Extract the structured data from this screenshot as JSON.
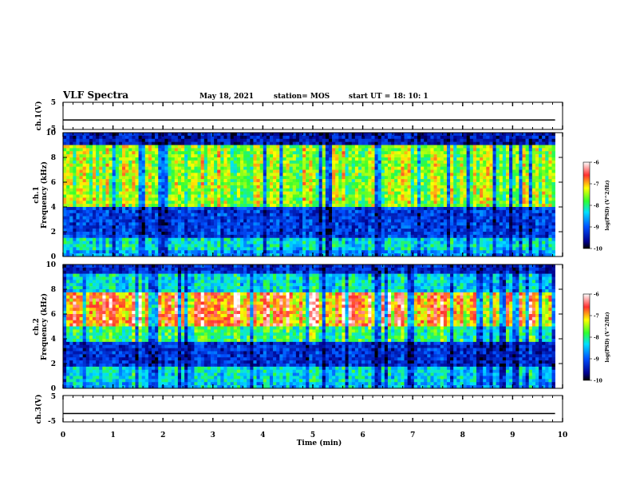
{
  "header": {
    "title": "VLF Spectra",
    "date": "May 18, 2021",
    "station": "station= MOS",
    "start_ut": "start  UT =   18: 10: 1"
  },
  "colors": {
    "spec_low": "#00008b",
    "spec_mid": "#00c8ff",
    "spec_green": "#3cff3c",
    "spec_yellow": "#ffff00",
    "spec_high": "#ff2020"
  },
  "chart_data": [
    {
      "type": "line",
      "name": "ch1-voltage",
      "ylabel": "ch.1(V)",
      "ylim": [
        -5,
        5
      ],
      "yticks": [
        "5",
        "-5"
      ],
      "level": -1.5,
      "xlim": [
        0,
        10
      ]
    },
    {
      "type": "heatmap",
      "name": "ch1-spectrogram",
      "ylabel": "ch.1\nFrequency (kHz)",
      "ylabel_line1": "ch.1",
      "ylabel_line2": "Frequency (kHz)",
      "ylim": [
        0,
        10
      ],
      "yticks": [
        "0",
        "2",
        "4",
        "6",
        "8",
        "10"
      ],
      "xlim": [
        0,
        9.85
      ],
      "bands": [
        {
          "from": 0,
          "to": 0.5,
          "level": 0.35
        },
        {
          "from": 0.5,
          "to": 1.6,
          "level": 0.45
        },
        {
          "from": 1.6,
          "to": 4.0,
          "level": 0.22
        },
        {
          "from": 4.0,
          "to": 9.0,
          "level": 0.65
        },
        {
          "from": 9.0,
          "to": 10,
          "level": 0.15
        }
      ],
      "colorbar": {
        "label": "log(PSD) (V^2/Hz)",
        "range": [
          -10,
          -6
        ],
        "ticks": [
          "-6",
          "-7",
          "-8",
          "-9",
          "-10"
        ]
      }
    },
    {
      "type": "heatmap",
      "name": "ch2-spectrogram",
      "ylabel_line1": "ch.2",
      "ylabel_line2": "Frequency (kHz)",
      "ylim": [
        0,
        10
      ],
      "yticks": [
        "0",
        "2",
        "4",
        "6",
        "8",
        "10"
      ],
      "xlim": [
        0,
        9.85
      ],
      "bands": [
        {
          "from": 0,
          "to": 0.6,
          "level": 0.4
        },
        {
          "from": 0.6,
          "to": 1.8,
          "level": 0.45
        },
        {
          "from": 1.8,
          "to": 3.8,
          "level": 0.2
        },
        {
          "from": 3.8,
          "to": 5.0,
          "level": 0.55
        },
        {
          "from": 5.0,
          "to": 7.8,
          "level": 0.85
        },
        {
          "from": 7.8,
          "to": 9.2,
          "level": 0.45
        },
        {
          "from": 9.2,
          "to": 10,
          "level": 0.2
        }
      ],
      "colorbar": {
        "label": "log(PSD) (V^2/Hz)",
        "range": [
          -10,
          -6
        ],
        "ticks": [
          "-6",
          "-7",
          "-8",
          "-9",
          "-10"
        ]
      }
    },
    {
      "type": "line",
      "name": "ch3-voltage",
      "ylabel": "ch.3(V)",
      "ylim": [
        -5,
        5
      ],
      "yticks": [
        "5",
        "-5"
      ],
      "level": -1.8,
      "xlim": [
        0,
        10
      ]
    }
  ],
  "xaxis": {
    "label": "Time  (min)",
    "ticks": [
      "0",
      "1",
      "2",
      "3",
      "4",
      "5",
      "6",
      "7",
      "8",
      "9",
      "10"
    ],
    "range": [
      0,
      10
    ]
  }
}
